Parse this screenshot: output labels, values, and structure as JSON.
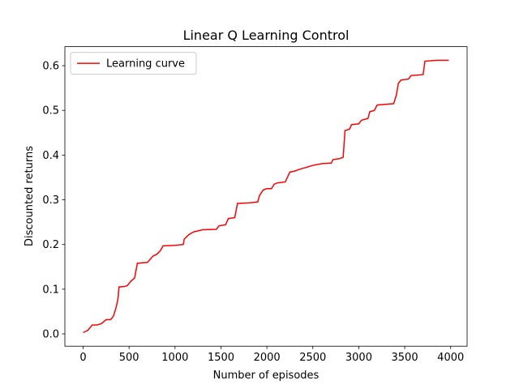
{
  "chart_data": {
    "type": "line",
    "title": "Linear Q Learning Control",
    "xlabel": "Number of episodes",
    "ylabel": "Discounted returns",
    "x": [
      0,
      50,
      100,
      150,
      200,
      250,
      300,
      330,
      360,
      380,
      390,
      450,
      480,
      520,
      560,
      590,
      700,
      760,
      800,
      840,
      870,
      1000,
      1090,
      1100,
      1150,
      1200,
      1300,
      1450,
      1480,
      1550,
      1580,
      1650,
      1680,
      1800,
      1900,
      1920,
      1960,
      2000,
      2050,
      2080,
      2120,
      2200,
      2250,
      2300,
      2350,
      2420,
      2500,
      2600,
      2700,
      2720,
      2790,
      2830,
      2850,
      2900,
      2920,
      3000,
      3030,
      3100,
      3120,
      3170,
      3200,
      3380,
      3410,
      3430,
      3460,
      3540,
      3570,
      3700,
      3720,
      3850,
      3980
    ],
    "series": [
      {
        "name": "Learning curve",
        "color": "#ff0000",
        "values": [
          0.003,
          0.008,
          0.02,
          0.02,
          0.023,
          0.032,
          0.032,
          0.04,
          0.06,
          0.08,
          0.105,
          0.106,
          0.108,
          0.118,
          0.125,
          0.158,
          0.16,
          0.174,
          0.178,
          0.186,
          0.197,
          0.198,
          0.2,
          0.212,
          0.222,
          0.228,
          0.233,
          0.234,
          0.242,
          0.244,
          0.258,
          0.26,
          0.292,
          0.293,
          0.295,
          0.31,
          0.322,
          0.325,
          0.325,
          0.335,
          0.338,
          0.34,
          0.362,
          0.364,
          0.368,
          0.372,
          0.377,
          0.381,
          0.382,
          0.39,
          0.392,
          0.395,
          0.455,
          0.458,
          0.468,
          0.47,
          0.478,
          0.482,
          0.497,
          0.5,
          0.512,
          0.515,
          0.535,
          0.56,
          0.568,
          0.57,
          0.578,
          0.58,
          0.61,
          0.612,
          0.612
        ]
      }
    ],
    "xlim": [
      -199,
      4179
    ],
    "xticks": [
      0,
      500,
      1000,
      1500,
      2000,
      2500,
      3000,
      3500,
      4000
    ],
    "ylim": [
      -0.0275,
      0.6425
    ],
    "yticks": [
      {
        "value": 0,
        "label": "0.0"
      },
      0.1,
      0.2,
      0.3,
      0.4,
      0.5,
      0.6
    ],
    "legend": "upper left"
  }
}
